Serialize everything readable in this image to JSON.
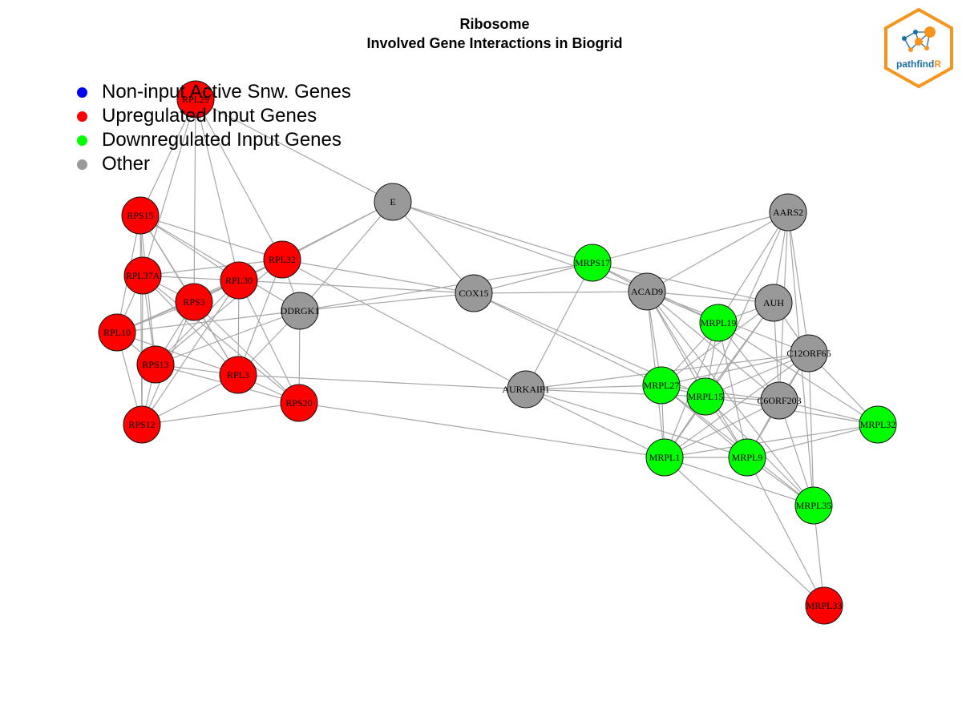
{
  "title": "Ribosome",
  "subtitle": "Involved Gene Interactions in Biogrid",
  "legend": [
    {
      "label": "Non-input Active Snw. Genes",
      "color": "#0000ee"
    },
    {
      "label": "Upregulated Input Genes",
      "color": "#ff0000"
    },
    {
      "label": "Downregulated Input Genes",
      "color": "#00ff00"
    },
    {
      "label": "Other",
      "color": "#999999"
    }
  ],
  "logo": {
    "text_main": "pathfind",
    "text_accent": "R"
  },
  "colors": {
    "up": "#ff0000",
    "down": "#00ff00",
    "other": "#999999",
    "edge": "#a6a6a6",
    "logo_orange": "#f7941d",
    "logo_blue": "#1b6fa3"
  },
  "nodes": [
    {
      "id": "RPL29",
      "group": "up"
    },
    {
      "id": "RPS15",
      "group": "up"
    },
    {
      "id": "RPL37A",
      "group": "up"
    },
    {
      "id": "RPS3",
      "group": "up"
    },
    {
      "id": "RPL30",
      "group": "up"
    },
    {
      "id": "RPL32",
      "group": "up"
    },
    {
      "id": "RPL10",
      "group": "up"
    },
    {
      "id": "RPS13",
      "group": "up"
    },
    {
      "id": "RPL3",
      "group": "up"
    },
    {
      "id": "RPS20",
      "group": "up"
    },
    {
      "id": "RPS12",
      "group": "up"
    },
    {
      "id": "DDRGK1",
      "group": "other"
    },
    {
      "id": "E",
      "group": "other"
    },
    {
      "id": "COX15",
      "group": "other"
    },
    {
      "id": "AURKAIP1",
      "group": "other"
    },
    {
      "id": "MRPS17",
      "group": "down"
    },
    {
      "id": "ACAD9",
      "group": "other"
    },
    {
      "id": "AARS2",
      "group": "other"
    },
    {
      "id": "AUH",
      "group": "other"
    },
    {
      "id": "MRPL19",
      "group": "down"
    },
    {
      "id": "C12ORF65",
      "group": "other"
    },
    {
      "id": "MRPL27",
      "group": "down"
    },
    {
      "id": "MRPL15",
      "group": "down"
    },
    {
      "id": "C6ORF203",
      "group": "other"
    },
    {
      "id": "MRPL32",
      "group": "down"
    },
    {
      "id": "MRPL1",
      "group": "down"
    },
    {
      "id": "MRPL9",
      "group": "down"
    },
    {
      "id": "MRPL35",
      "group": "down"
    },
    {
      "id": "MRPL33",
      "group": "up"
    }
  ],
  "edges": [
    [
      "RPL29",
      "RPS15"
    ],
    [
      "RPL29",
      "RPL37A"
    ],
    [
      "RPL29",
      "RPS3"
    ],
    [
      "RPL29",
      "RPL32"
    ],
    [
      "RPL29",
      "E"
    ],
    [
      "RPL29",
      "RPL30"
    ],
    [
      "RPS15",
      "RPL37A"
    ],
    [
      "RPS15",
      "RPS3"
    ],
    [
      "RPS15",
      "RPL30"
    ],
    [
      "RPS15",
      "RPL32"
    ],
    [
      "RPS15",
      "RPL10"
    ],
    [
      "RPS15",
      "RPS13"
    ],
    [
      "RPS15",
      "RPL3"
    ],
    [
      "RPS15",
      "RPS12"
    ],
    [
      "RPS15",
      "DDRGK1"
    ],
    [
      "RPL37A",
      "RPS3"
    ],
    [
      "RPL37A",
      "RPL30"
    ],
    [
      "RPL37A",
      "RPL32"
    ],
    [
      "RPL37A",
      "RPL10"
    ],
    [
      "RPL37A",
      "RPS13"
    ],
    [
      "RPL37A",
      "RPL3"
    ],
    [
      "RPL37A",
      "RPS12"
    ],
    [
      "RPL37A",
      "RPS20"
    ],
    [
      "RPS3",
      "RPL30"
    ],
    [
      "RPS3",
      "RPL10"
    ],
    [
      "RPS3",
      "RPS13"
    ],
    [
      "RPS3",
      "RPL3"
    ],
    [
      "RPS3",
      "RPS12"
    ],
    [
      "RPS3",
      "RPS20"
    ],
    [
      "RPS3",
      "RPL32"
    ],
    [
      "RPL30",
      "RPL10"
    ],
    [
      "RPL30",
      "RPS13"
    ],
    [
      "RPL30",
      "RPL3"
    ],
    [
      "RPL30",
      "RPS12"
    ],
    [
      "RPL30",
      "RPS20"
    ],
    [
      "RPL30",
      "RPL32"
    ],
    [
      "RPL32",
      "RPL10"
    ],
    [
      "RPL32",
      "RPS13"
    ],
    [
      "RPL32",
      "RPL3"
    ],
    [
      "RPL32",
      "DDRGK1"
    ],
    [
      "RPL32",
      "E"
    ],
    [
      "RPL32",
      "COX15"
    ],
    [
      "RPL32",
      "AURKAIP1"
    ],
    [
      "RPL10",
      "RPS13"
    ],
    [
      "RPL10",
      "RPL3"
    ],
    [
      "RPL10",
      "RPS12"
    ],
    [
      "RPL10",
      "DDRGK1"
    ],
    [
      "RPS13",
      "RPL3"
    ],
    [
      "RPS13",
      "RPS12"
    ],
    [
      "RPS13",
      "RPS20"
    ],
    [
      "RPS13",
      "DDRGK1"
    ],
    [
      "RPL3",
      "RPS20"
    ],
    [
      "RPL3",
      "RPS12"
    ],
    [
      "RPL3",
      "AURKAIP1"
    ],
    [
      "RPL3",
      "DDRGK1"
    ],
    [
      "RPS20",
      "RPS12"
    ],
    [
      "RPS20",
      "MRPL1"
    ],
    [
      "RPS20",
      "DDRGK1"
    ],
    [
      "DDRGK1",
      "E"
    ],
    [
      "DDRGK1",
      "COX15"
    ],
    [
      "DDRGK1",
      "MRPS17"
    ],
    [
      "E",
      "COX15"
    ],
    [
      "E",
      "MRPS17"
    ],
    [
      "E",
      "ACAD9"
    ],
    [
      "E",
      "RPL30"
    ],
    [
      "COX15",
      "MRPS17"
    ],
    [
      "COX15",
      "ACAD9"
    ],
    [
      "COX15",
      "MRPL27"
    ],
    [
      "COX15",
      "MRPL15"
    ],
    [
      "RPL30",
      "COX15"
    ],
    [
      "AURKAIP1",
      "MRPS17"
    ],
    [
      "AURKAIP1",
      "MRPL27"
    ],
    [
      "AURKAIP1",
      "MRPL15"
    ],
    [
      "AURKAIP1",
      "MRPL1"
    ],
    [
      "AURKAIP1",
      "MRPL9"
    ],
    [
      "AURKAIP1",
      "C12ORF65"
    ],
    [
      "MRPS17",
      "ACAD9"
    ],
    [
      "MRPS17",
      "AARS2"
    ],
    [
      "MRPS17",
      "AUH"
    ],
    [
      "MRPS17",
      "MRPL19"
    ],
    [
      "ACAD9",
      "AARS2"
    ],
    [
      "ACAD9",
      "AUH"
    ],
    [
      "ACAD9",
      "MRPL19"
    ],
    [
      "ACAD9",
      "C12ORF65"
    ],
    [
      "ACAD9",
      "MRPL27"
    ],
    [
      "ACAD9",
      "MRPL15"
    ],
    [
      "ACAD9",
      "MRPL1"
    ],
    [
      "ACAD9",
      "MRPL9"
    ],
    [
      "ACAD9",
      "C6ORF203"
    ],
    [
      "ACAD9",
      "MRPL35"
    ],
    [
      "AARS2",
      "AUH"
    ],
    [
      "AARS2",
      "MRPL19"
    ],
    [
      "AARS2",
      "C12ORF65"
    ],
    [
      "AARS2",
      "MRPL15"
    ],
    [
      "AARS2",
      "C6ORF203"
    ],
    [
      "AARS2",
      "MRPL35"
    ],
    [
      "AUH",
      "MRPL19"
    ],
    [
      "AUH",
      "C12ORF65"
    ],
    [
      "AUH",
      "MRPL27"
    ],
    [
      "AUH",
      "MRPL15"
    ],
    [
      "AUH",
      "MRPL1"
    ],
    [
      "AUH",
      "C6ORF203"
    ],
    [
      "MRPL19",
      "MRPL27"
    ],
    [
      "MRPL19",
      "MRPL15"
    ],
    [
      "MRPL19",
      "MRPL1"
    ],
    [
      "MRPL19",
      "MRPL9"
    ],
    [
      "MRPL19",
      "C6ORF203"
    ],
    [
      "MRPL19",
      "MRPL32"
    ],
    [
      "C12ORF65",
      "MRPL27"
    ],
    [
      "C12ORF65",
      "MRPL15"
    ],
    [
      "C12ORF65",
      "C6ORF203"
    ],
    [
      "C12ORF65",
      "MRPL32"
    ],
    [
      "C12ORF65",
      "MRPL9"
    ],
    [
      "C12ORF65",
      "MRPL35"
    ],
    [
      "C12ORF65",
      "MRPL1"
    ],
    [
      "MRPL27",
      "MRPL15"
    ],
    [
      "MRPL27",
      "MRPL1"
    ],
    [
      "MRPL27",
      "MRPL9"
    ],
    [
      "MRPL27",
      "C6ORF203"
    ],
    [
      "MRPL27",
      "MRPL35"
    ],
    [
      "MRPL15",
      "MRPL1"
    ],
    [
      "MRPL15",
      "MRPL9"
    ],
    [
      "MRPL15",
      "C6ORF203"
    ],
    [
      "MRPL15",
      "MRPL35"
    ],
    [
      "MRPL15",
      "MRPL32"
    ],
    [
      "C6ORF203",
      "MRPL1"
    ],
    [
      "C6ORF203",
      "MRPL9"
    ],
    [
      "C6ORF203",
      "MRPL35"
    ],
    [
      "C6ORF203",
      "MRPL32"
    ],
    [
      "MRPL1",
      "MRPL9"
    ],
    [
      "MRPL1",
      "MRPL35"
    ],
    [
      "MRPL1",
      "MRPL32"
    ],
    [
      "MRPL1",
      "MRPL33"
    ],
    [
      "MRPL9",
      "MRPL35"
    ],
    [
      "MRPL9",
      "MRPL32"
    ],
    [
      "MRPL9",
      "MRPL33"
    ],
    [
      "MRPL35",
      "MRPL33"
    ]
  ]
}
